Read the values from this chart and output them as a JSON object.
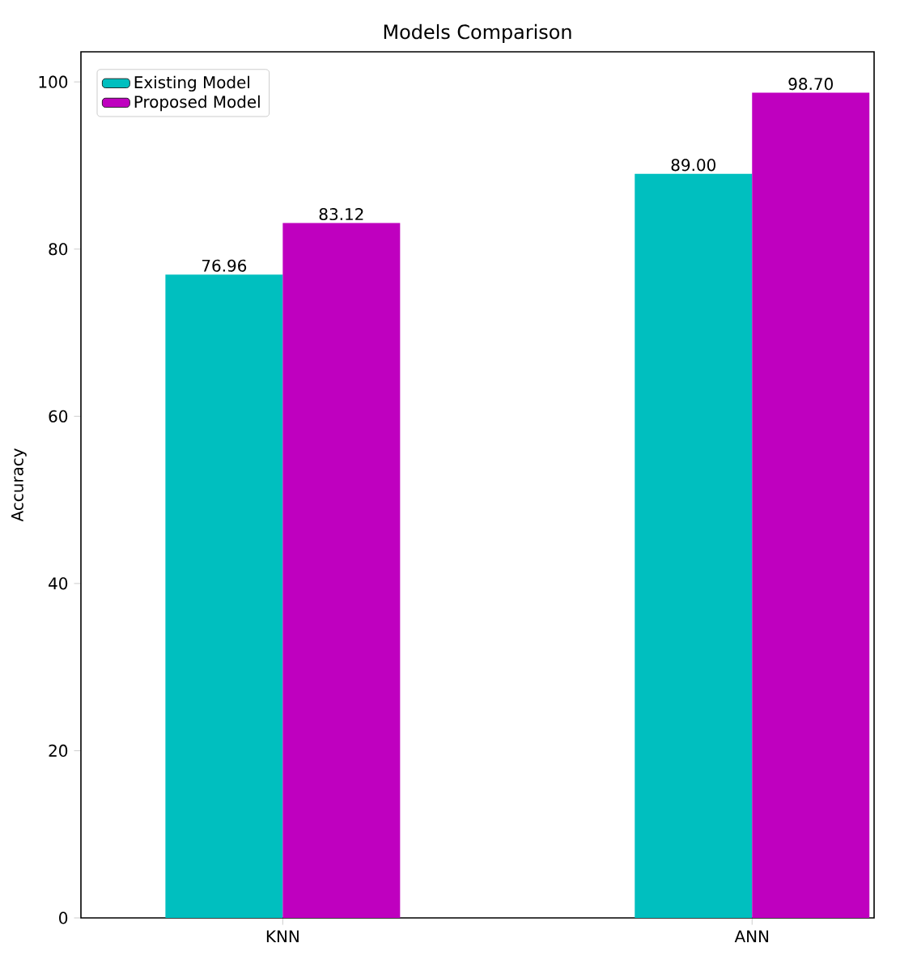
{
  "chart_data": {
    "type": "bar",
    "title": "Models Comparison",
    "ylabel": "Accuracy",
    "categories": [
      "KNN",
      "ANN"
    ],
    "series": [
      {
        "name": "Existing Model",
        "color": "#00bfbf",
        "values": [
          76.96,
          89.0
        ],
        "value_labels": [
          "76.96",
          "89.00"
        ]
      },
      {
        "name": "Proposed Model",
        "color": "#bf00bf",
        "values": [
          83.12,
          98.7
        ],
        "value_labels": [
          "83.12",
          "98.70"
        ]
      }
    ],
    "ylim": [
      0,
      103.6
    ],
    "yticks": [
      0,
      20,
      40,
      60,
      80,
      100
    ],
    "grid": false,
    "legend": "top left"
  }
}
